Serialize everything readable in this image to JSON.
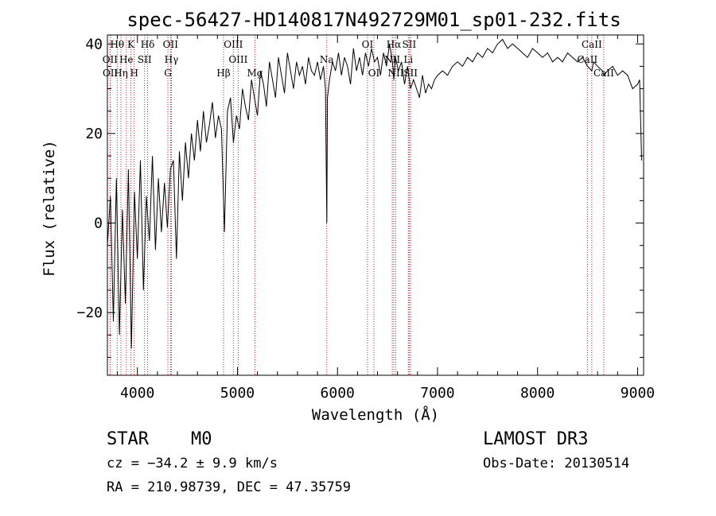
{
  "chart_data": {
    "type": "line",
    "title": "spec-56427-HD140817N492729M01_sp01-232.fits",
    "xlabel": "Wavelength (Å)",
    "ylabel": "Flux (relative)",
    "xlim": [
      3700,
      9060
    ],
    "ylim": [
      -34,
      42
    ],
    "xticks": [
      4000,
      5000,
      6000,
      7000,
      8000,
      9000
    ],
    "yticks": [
      -20,
      0,
      20,
      40
    ],
    "xtick_labels": [
      "4000",
      "5000",
      "6000",
      "7000",
      "8000",
      "9000"
    ],
    "ytick_labels": [
      "−20",
      "0",
      "20",
      "40"
    ],
    "line_color": "#000000",
    "marker_color": "#b22222",
    "series": [
      {
        "name": "flux",
        "x": [
          3700,
          3730,
          3760,
          3790,
          3820,
          3850,
          3880,
          3910,
          3940,
          3970,
          4000,
          4030,
          4060,
          4090,
          4120,
          4150,
          4180,
          4210,
          4240,
          4270,
          4300,
          4330,
          4360,
          4390,
          4420,
          4450,
          4480,
          4510,
          4540,
          4570,
          4600,
          4630,
          4660,
          4690,
          4720,
          4750,
          4780,
          4810,
          4840,
          4870,
          4900,
          4930,
          4960,
          4990,
          5020,
          5050,
          5080,
          5110,
          5140,
          5170,
          5200,
          5230,
          5260,
          5290,
          5320,
          5350,
          5380,
          5410,
          5440,
          5470,
          5500,
          5530,
          5560,
          5590,
          5620,
          5650,
          5680,
          5710,
          5740,
          5770,
          5800,
          5830,
          5860,
          5880,
          5893,
          5900,
          5920,
          5950,
          5980,
          6010,
          6040,
          6070,
          6100,
          6130,
          6160,
          6190,
          6220,
          6250,
          6280,
          6310,
          6340,
          6370,
          6400,
          6430,
          6460,
          6490,
          6520,
          6550,
          6563,
          6580,
          6610,
          6640,
          6670,
          6700,
          6730,
          6760,
          6790,
          6820,
          6850,
          6880,
          6910,
          6940,
          6970,
          7000,
          7050,
          7100,
          7150,
          7200,
          7250,
          7300,
          7350,
          7400,
          7450,
          7500,
          7550,
          7600,
          7650,
          7700,
          7750,
          7800,
          7850,
          7900,
          7950,
          8000,
          8050,
          8100,
          8150,
          8200,
          8250,
          8300,
          8350,
          8400,
          8450,
          8500,
          8542,
          8560,
          8600,
          8650,
          8662,
          8700,
          8750,
          8800,
          8850,
          8900,
          8950,
          9000,
          9020,
          9040
        ],
        "y": [
          -5,
          6,
          -22,
          10,
          -25,
          3,
          -18,
          12,
          -28,
          7,
          -8,
          14,
          -15,
          6,
          -4,
          15,
          -6,
          10,
          -2,
          9,
          -1,
          12,
          14,
          -8,
          16,
          5,
          18,
          10,
          20,
          14,
          23,
          16,
          25,
          18,
          22,
          27,
          19,
          24,
          21,
          -2,
          25,
          28,
          18,
          24,
          21,
          30,
          26,
          23,
          32,
          28,
          24,
          34,
          31,
          26,
          36,
          32,
          28,
          37,
          33,
          29,
          38,
          34,
          30,
          36,
          33,
          35,
          31,
          37,
          34,
          33,
          36,
          32,
          35,
          30,
          0,
          28,
          32,
          36,
          34,
          38,
          33,
          37,
          35,
          31,
          39,
          34,
          37,
          33,
          38,
          35,
          39,
          36,
          37,
          33,
          38,
          35,
          40,
          36,
          32,
          37,
          34,
          36,
          31,
          35,
          30,
          32,
          30,
          28,
          33,
          29,
          31,
          30,
          32,
          33,
          34,
          33,
          35,
          36,
          35,
          37,
          36,
          38,
          37,
          39,
          38,
          40,
          41,
          39,
          40,
          39,
          38,
          37,
          39,
          38,
          37,
          38,
          36,
          37,
          36,
          38,
          37,
          36,
          37,
          35,
          34,
          36,
          35,
          34,
          33,
          34,
          35,
          33,
          34,
          33,
          30,
          31,
          32,
          14
        ]
      }
    ],
    "line_markers": [
      {
        "label": "Hθ",
        "x": 3798
      },
      {
        "label": "K",
        "x": 3934
      },
      {
        "label": "Hδ",
        "x": 4102
      },
      {
        "label": "OII",
        "x": 4331
      },
      {
        "label": "OIII",
        "x": 4959
      },
      {
        "label": "OI",
        "x": 6300
      },
      {
        "label": "Hα",
        "x": 6563
      },
      {
        "label": "SII",
        "x": 6717
      },
      {
        "label": "CaII",
        "x": 8542
      },
      {
        "label": "OII",
        "x": 3727
      },
      {
        "label": "He",
        "x": 3889
      },
      {
        "label": "SII",
        "x": 4072
      },
      {
        "label": "Hγ",
        "x": 4340
      },
      {
        "label": "OIII",
        "x": 5007
      },
      {
        "label": "Na",
        "x": 5893
      },
      {
        "label": "NII",
        "x": 6548
      },
      {
        "label": "Li",
        "x": 6708
      },
      {
        "label": "CaII",
        "x": 8498
      },
      {
        "label": "OII",
        "x": 3729
      },
      {
        "label": "Hη",
        "x": 3835
      },
      {
        "label": "H",
        "x": 3968
      },
      {
        "label": "G",
        "x": 4305
      },
      {
        "label": "Hβ",
        "x": 4861
      },
      {
        "label": "Mg",
        "x": 5175
      },
      {
        "label": "OI",
        "x": 6364
      },
      {
        "label": "NII",
        "x": 6583
      },
      {
        "label": "SII",
        "x": 6731
      },
      {
        "label": "CaII",
        "x": 8662
      }
    ]
  },
  "footer": {
    "object_type": "STAR",
    "subclass": "M0",
    "redshift_line": "cz = −34.2 ± 9.9 km/s",
    "coords_line": "RA = 210.98739, DEC =  47.35759",
    "survey": "LAMOST DR3",
    "obs_date": "Obs-Date: 20130514"
  }
}
